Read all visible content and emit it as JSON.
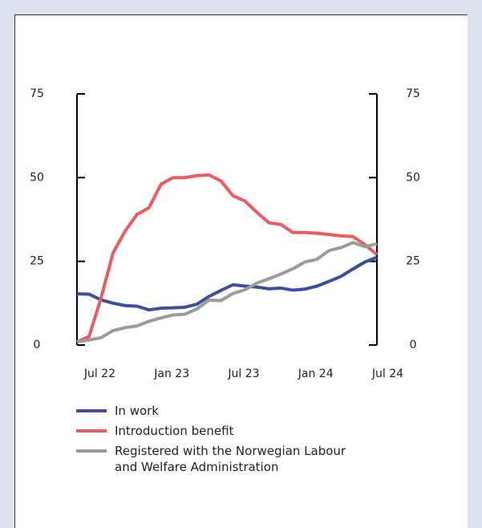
{
  "chart_data": {
    "type": "line",
    "categories": [
      null,
      null,
      "Jul 22",
      null,
      null,
      null,
      null,
      null,
      "Jan 23",
      null,
      null,
      null,
      null,
      null,
      "Jul 23",
      null,
      null,
      null,
      null,
      null,
      "Jan 24",
      null,
      null,
      null,
      null,
      null,
      "Jul 24"
    ],
    "series": [
      {
        "name": "In work",
        "color": "#3a4fa0",
        "values": [
          15.3,
          15.2,
          13.5,
          12.5,
          11.8,
          11.6,
          10.5,
          11,
          11.1,
          11.3,
          12.2,
          14.5,
          16.3,
          18,
          17.6,
          17.3,
          16.8,
          17,
          16.4,
          16.7,
          17.6,
          19,
          20.5,
          22.7,
          24.8,
          26.2,
          null
        ]
      },
      {
        "name": "Introduction benefit",
        "color": "#ee5a5f",
        "values": [
          1,
          2.5,
          14,
          27.5,
          34,
          39,
          41,
          48,
          50,
          50,
          50.6,
          50.8,
          49,
          44.6,
          43,
          39.6,
          36.5,
          36,
          33.6,
          33.6,
          33.4,
          33,
          32.6,
          32.4,
          30,
          27,
          null
        ]
      },
      {
        "name": "Registered with the Norwegian Labour and Welfare Administration",
        "color": "#9b9b9b",
        "values": [
          1,
          1.5,
          2.2,
          4.3,
          5.2,
          5.7,
          7.1,
          8.1,
          9,
          9.2,
          10.8,
          13.4,
          13.3,
          15.4,
          16.5,
          18.5,
          19.8,
          21.2,
          22.8,
          24.8,
          25.6,
          28.2,
          29.1,
          30.6,
          29.4,
          30.2,
          null
        ]
      }
    ],
    "ylim": [
      0,
      75
    ],
    "yticks": [
      0,
      25,
      50,
      75
    ],
    "y2lim": [
      0,
      75
    ],
    "y2ticks": [
      0,
      25,
      50,
      75
    ]
  }
}
